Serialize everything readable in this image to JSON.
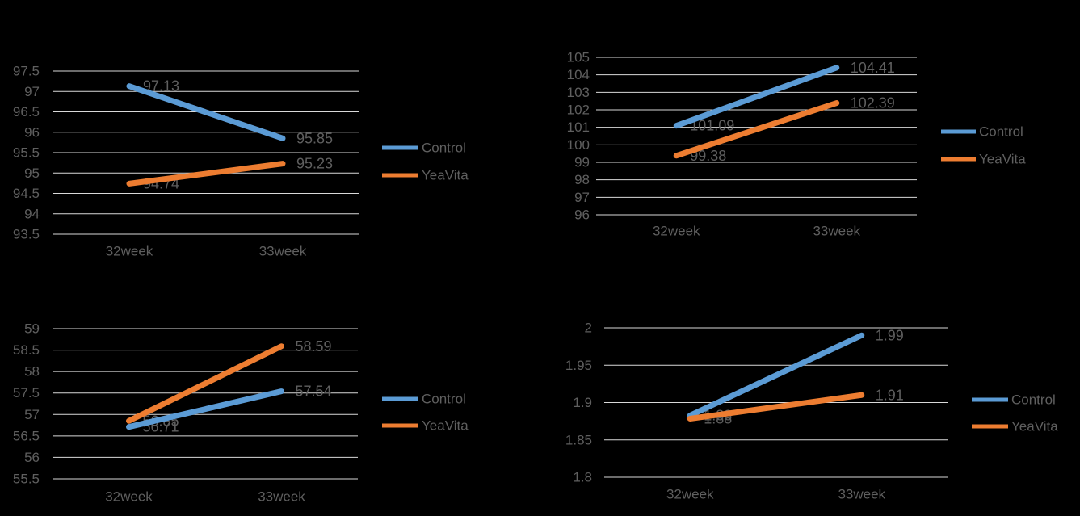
{
  "page": {
    "background_color": "#000000",
    "text_color": "#5f5f5f",
    "gridline_color": "#D9D9D9"
  },
  "chart_data": [
    {
      "id": "top-left",
      "type": "line",
      "title": "",
      "categories": [
        "32week",
        "33week"
      ],
      "series": [
        {
          "name": "Control",
          "color": "#5B9BD5",
          "values": [
            97.13,
            95.85
          ],
          "data_labels": [
            "97.13",
            "95.85"
          ]
        },
        {
          "name": "YeaVita",
          "color": "#ED7D31",
          "values": [
            94.74,
            95.23
          ],
          "data_labels": [
            "94.74",
            "95.23"
          ]
        }
      ],
      "ylim": [
        93.5,
        97.5
      ],
      "ystep": 0.5,
      "yticks": [
        "97.5",
        "97",
        "96.5",
        "96",
        "95.5",
        "95",
        "94.5",
        "94",
        "93.5"
      ],
      "grid": true,
      "legend": {
        "position": "right",
        "entries": [
          "Control",
          "YeaVita"
        ]
      }
    },
    {
      "id": "top-right",
      "type": "line",
      "title": "",
      "categories": [
        "32week",
        "33week"
      ],
      "series": [
        {
          "name": "Control",
          "color": "#5B9BD5",
          "values": [
            101.09,
            104.41
          ],
          "data_labels": [
            "101.09",
            "104.41"
          ]
        },
        {
          "name": "YeaVita",
          "color": "#ED7D31",
          "values": [
            99.38,
            102.39
          ],
          "data_labels": [
            "99.38",
            "102.39"
          ]
        }
      ],
      "ylim": [
        96,
        105
      ],
      "ystep": 1,
      "yticks": [
        "105",
        "104",
        "103",
        "102",
        "101",
        "100",
        "99",
        "98",
        "97",
        "96"
      ],
      "grid": true,
      "legend": {
        "position": "right",
        "entries": [
          "Control",
          "YeaVita"
        ]
      }
    },
    {
      "id": "bottom-left",
      "type": "line",
      "title": "",
      "categories": [
        "32week",
        "33week"
      ],
      "series": [
        {
          "name": "Control",
          "color": "#5B9BD5",
          "values": [
            56.71,
            57.54
          ],
          "data_labels": [
            "56.71",
            "57.54"
          ]
        },
        {
          "name": "YeaVita",
          "color": "#ED7D31",
          "values": [
            56.85,
            58.59
          ],
          "data_labels": [
            "56.85",
            "58.59"
          ]
        }
      ],
      "ylim": [
        55.5,
        59
      ],
      "ystep": 0.5,
      "yticks": [
        "59",
        "58.5",
        "58",
        "57.5",
        "57",
        "56.5",
        "56",
        "55.5"
      ],
      "grid": true,
      "legend": {
        "position": "right",
        "entries": [
          "Control",
          "YeaVita"
        ]
      }
    },
    {
      "id": "bottom-right",
      "type": "line",
      "title": "",
      "categories": [
        "32week",
        "33week"
      ],
      "series": [
        {
          "name": "Control",
          "color": "#5B9BD5",
          "values": [
            1.88,
            1.99
          ],
          "data_labels": [
            "1.88",
            "1.99"
          ]
        },
        {
          "name": "YeaVita",
          "color": "#ED7D31",
          "values": [
            1.88,
            1.91
          ],
          "data_labels": [
            "1.88",
            "1.91"
          ]
        }
      ],
      "ylim": [
        1.8,
        2
      ],
      "ystep": 0.05,
      "yticks": [
        "2",
        "1.95",
        "1.9",
        "1.85",
        "1.8"
      ],
      "grid": true,
      "legend": {
        "position": "right",
        "entries": [
          "Control",
          "YeaVita"
        ]
      }
    }
  ]
}
